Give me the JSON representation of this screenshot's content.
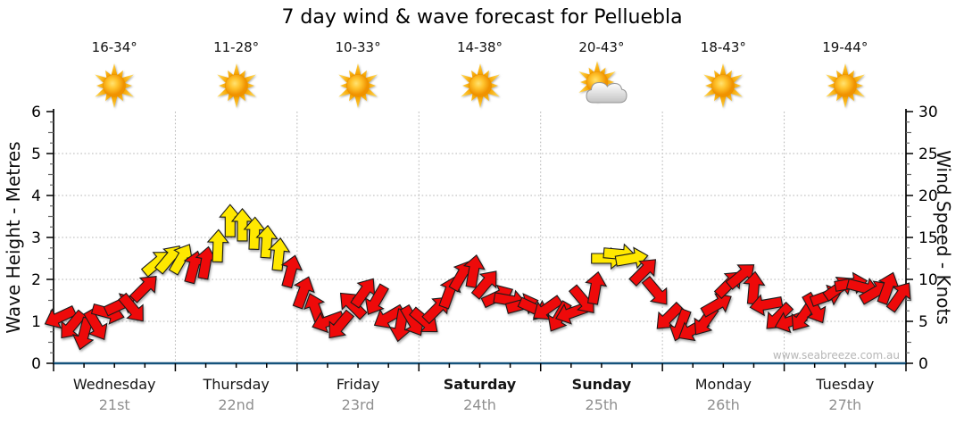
{
  "title": "7 day wind & wave forecast for Pelluebla",
  "watermark": "www.seabreeze.com.au",
  "colors": {
    "arrow_red": "#ee0a0a",
    "arrow_yellow": "#ffe800",
    "axis_blue": "#16537c",
    "grid_gray": "#b4b4b4",
    "tick_black": "#000000",
    "date_gray": "#8f8f8f",
    "watermark_gray": "#b6b6b6",
    "sun_orange": "#f6a400",
    "cloud_gray": "#c3c3c3"
  },
  "days": [
    {
      "name": "Wednesday",
      "date": "21st",
      "temp": "16-34°",
      "icon": "sun",
      "weekend": false
    },
    {
      "name": "Thursday",
      "date": "22nd",
      "temp": "11-28°",
      "icon": "sun",
      "weekend": false
    },
    {
      "name": "Friday",
      "date": "23rd",
      "temp": "10-33°",
      "icon": "sun",
      "weekend": false
    },
    {
      "name": "Saturday",
      "date": "24th",
      "temp": "14-38°",
      "icon": "sun",
      "weekend": true
    },
    {
      "name": "Sunday",
      "date": "25th",
      "temp": "20-43°",
      "icon": "sun-cloud",
      "weekend": true
    },
    {
      "name": "Monday",
      "date": "26th",
      "temp": "18-43°",
      "icon": "sun",
      "weekend": false
    },
    {
      "name": "Tuesday",
      "date": "27th",
      "temp": "19-44°",
      "icon": "sun",
      "weekend": false
    }
  ],
  "chart_data": {
    "type": "wind-arrows-forecast",
    "wave_axis": {
      "label": "Wave Height - Metres",
      "range": [
        0,
        6
      ],
      "ticks": [
        0,
        1,
        2,
        3,
        4,
        5,
        6
      ]
    },
    "wind_axis": {
      "label": "Wind Speed - Knots",
      "range": [
        0,
        30
      ],
      "ticks": [
        0,
        5,
        10,
        15,
        20,
        25,
        30
      ]
    },
    "grid": "dotted gray, horizontal at each metre, vertical at day boundaries",
    "slots_per_day": 10,
    "dir_convention": "degrees: 0 = pointing east/right, 90 = pointing north/up",
    "color_convention": "r = red arrow (lighter wind), y = yellow arrow (~12+ knots)",
    "series": [
      {
        "day": "Wednesday",
        "kt": [
          5.5,
          4.5,
          3.5,
          4.5,
          6,
          7,
          6.5,
          9,
          12,
          12.5
        ],
        "dir": [
          205,
          230,
          255,
          300,
          345,
          25,
          310,
          45,
          40,
          50
        ],
        "col": "rrrrrrrryy"
      },
      {
        "day": "Thursday",
        "kt": [
          12.5,
          11.5,
          12,
          14,
          17,
          16.5,
          15.5,
          14.5,
          13,
          11
        ],
        "dir": [
          60,
          75,
          80,
          88,
          90,
          90,
          88,
          86,
          84,
          75
        ],
        "col": "yrryyyyyyr"
      },
      {
        "day": "Friday",
        "kt": [
          8.5,
          6.5,
          5,
          4.5,
          7,
          8.5,
          7.5,
          5.5,
          4.5,
          5
        ],
        "dir": [
          70,
          110,
          200,
          230,
          135,
          55,
          240,
          210,
          260,
          300
        ],
        "col": "rrrrrrrrrr"
      },
      {
        "day": "Saturday",
        "kt": [
          5,
          6.5,
          8.5,
          10.5,
          11,
          9.5,
          8,
          7.5,
          7,
          6.5
        ],
        "dir": [
          320,
          45,
          70,
          60,
          80,
          50,
          25,
          350,
          15,
          335
        ],
        "col": "rrrrrrrrrr"
      },
      {
        "day": "Sunday",
        "kt": [
          6.5,
          5.5,
          6,
          7.5,
          9,
          12.5,
          13,
          12.5,
          11,
          8.5
        ],
        "dir": [
          215,
          240,
          200,
          310,
          80,
          0,
          355,
          10,
          45,
          310
        ],
        "col": "rrrrryyyrr"
      },
      {
        "day": "Monday",
        "kt": [
          5.5,
          4.5,
          4,
          5,
          7,
          9.5,
          10.5,
          9,
          7,
          5.5
        ],
        "dir": [
          225,
          250,
          210,
          235,
          30,
          45,
          40,
          85,
          190,
          225
        ],
        "col": "rrrrrrrrrr"
      },
      {
        "day": "Tuesday",
        "kt": [
          5,
          5.5,
          6.5,
          8,
          9,
          9.5,
          9,
          8.5,
          9,
          8
        ],
        "dir": [
          200,
          235,
          300,
          20,
          35,
          10,
          345,
          30,
          70,
          55
        ],
        "col": "rrrrrrrrrr"
      }
    ]
  }
}
